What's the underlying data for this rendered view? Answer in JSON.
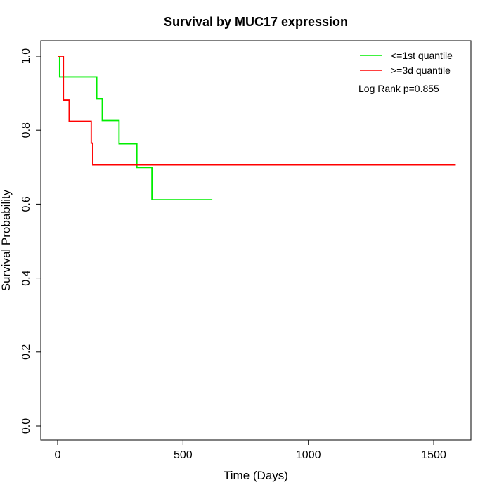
{
  "chart_data": {
    "type": "line",
    "title": "Survival by MUC17 expression",
    "xlabel": "Time (Days)",
    "ylabel": "Survival Probability",
    "xlim": [
      0,
      1600
    ],
    "ylim": [
      0,
      1
    ],
    "xticks": [
      0,
      500,
      1000,
      1500
    ],
    "yticks": [
      0.0,
      0.2,
      0.4,
      0.6,
      0.8,
      1.0
    ],
    "xtick_labels": [
      "0",
      "500",
      "1000",
      "1500"
    ],
    "ytick_labels": [
      "0.0",
      "0.2",
      "0.4",
      "0.6",
      "0.8",
      "1.0"
    ],
    "legend_position": "top-right",
    "annotation": "Log Rank p=0.855",
    "series": [
      {
        "name": "<=1st quantile",
        "color": "#00ee00",
        "step_times": [
          0,
          8,
          156,
          178,
          245,
          316,
          376,
          617
        ],
        "survival": [
          1.0,
          0.944,
          0.885,
          0.826,
          0.763,
          0.699,
          0.612,
          0.612
        ]
      },
      {
        "name": ">=3d quantile",
        "color": "#ff0000",
        "step_times": [
          0,
          23,
          46,
          134,
          140,
          1588
        ],
        "survival": [
          1.0,
          0.882,
          0.824,
          0.765,
          0.706,
          0.706
        ]
      }
    ]
  }
}
